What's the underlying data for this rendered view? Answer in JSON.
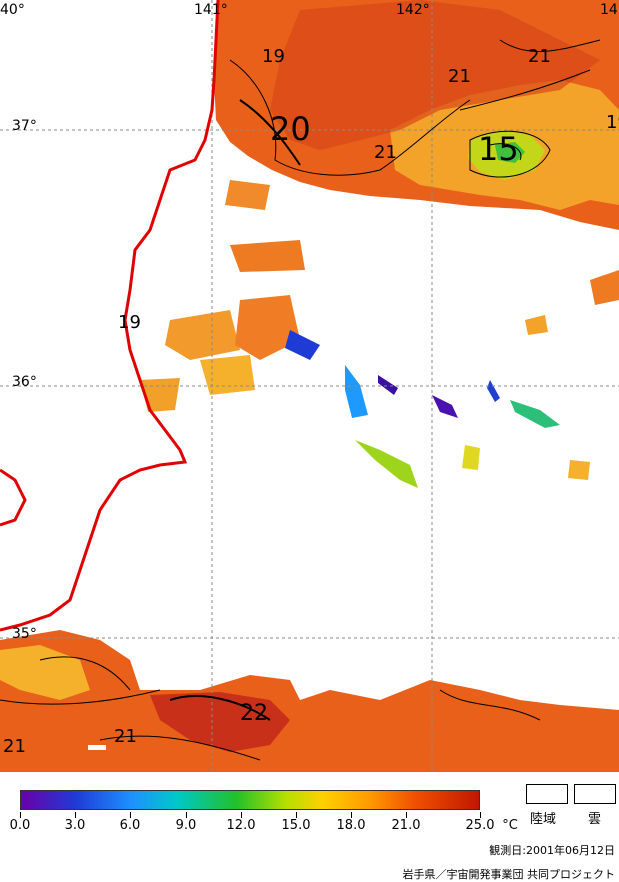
{
  "map": {
    "longitude_labels": [
      "40°",
      "141°",
      "142°",
      "14"
    ],
    "latitude_labels": [
      "37°",
      "36°",
      "35°"
    ],
    "contour_labels": [
      "19",
      "20",
      "21",
      "21",
      "21",
      "15",
      "19",
      "19",
      "21",
      "21",
      "22",
      "21"
    ]
  },
  "colorbar": {
    "ticks": [
      "0.0",
      "3.0",
      "6.0",
      "9.0",
      "12.0",
      "15.0",
      "18.0",
      "21.0",
      "25.0"
    ],
    "unit": "°C",
    "min": 0,
    "max": 25
  },
  "legend": {
    "land_label": "陸域",
    "cloud_label": "雲"
  },
  "observation_date": "観測日:2001年06月12日",
  "credit": "岩手県／宇宙開発事業団 共同プロジェクト"
}
